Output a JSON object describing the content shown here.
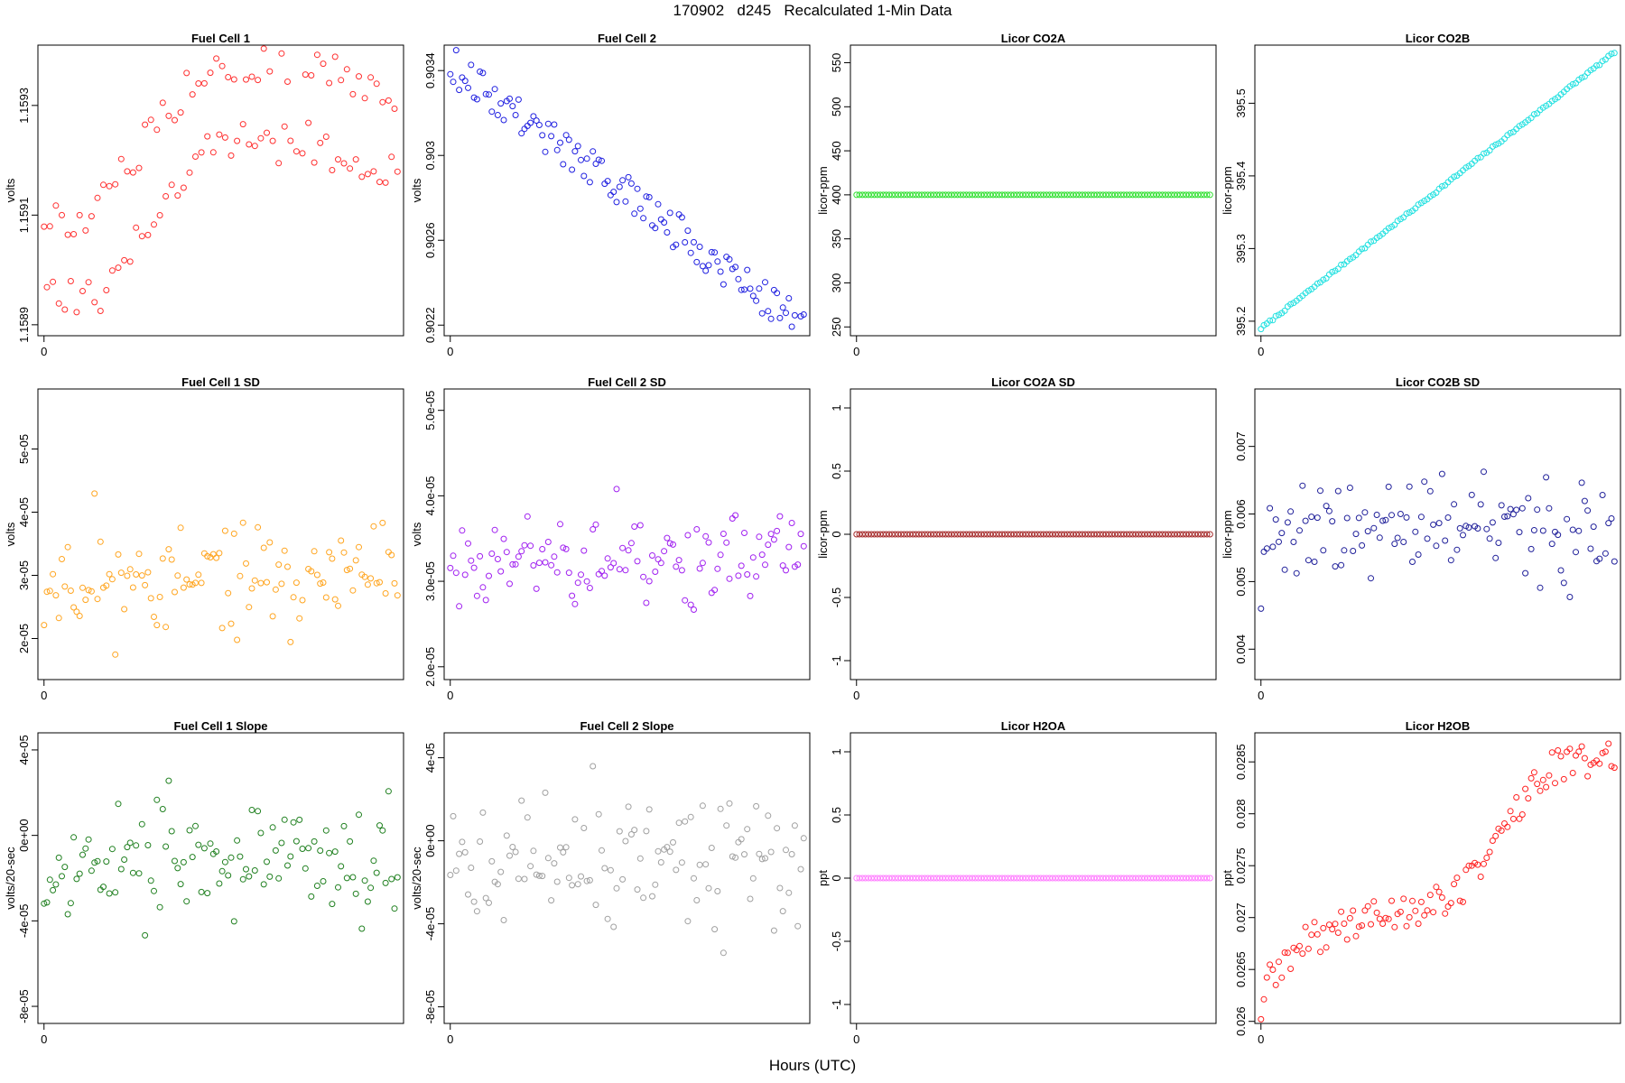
{
  "page_title": "170902   d245   Recalculated 1-Min Data",
  "xlabel": "Hours (UTC)",
  "chart_data": [
    {
      "type": "scatter",
      "title": "Fuel Cell 1",
      "ylabel": "volts",
      "color": "#ff3030",
      "x_ticks": [
        0
      ],
      "xlim": [
        -2,
        118
      ],
      "y_ticks": [
        1.1589,
        1.1591,
        1.1593
      ],
      "ylim": [
        1.15888,
        1.15941
      ],
      "pattern": "fc1",
      "n": 120,
      "start": 1.15912,
      "end": 1.15926
    },
    {
      "type": "scatter",
      "title": "Fuel Cell 2",
      "ylabel": "volts",
      "color": "#2020e0",
      "x_ticks": [
        0
      ],
      "xlim": [
        -2,
        118
      ],
      "y_ticks": [
        0.9022,
        0.9026,
        0.903,
        0.9034
      ],
      "ylim": [
        0.90215,
        0.90352
      ],
      "pattern": "fc2",
      "n": 120,
      "start": 0.90343,
      "end": 0.9022
    },
    {
      "type": "scatter",
      "title": "Licor CO2A",
      "ylabel": "licor-ppm",
      "color": "#30e030",
      "x_ticks": [
        0
      ],
      "xlim": [
        -2,
        118
      ],
      "y_ticks": [
        250,
        300,
        350,
        400,
        450,
        500,
        550
      ],
      "ylim": [
        240,
        570
      ],
      "pattern": "flat",
      "n": 120,
      "value": 400
    },
    {
      "type": "scatter",
      "title": "Licor CO2B",
      "ylabel": "licor-ppm",
      "color": "#20e0e0",
      "x_ticks": [
        0
      ],
      "xlim": [
        -2,
        118
      ],
      "y_ticks": [
        395.2,
        395.3,
        395.4,
        395.5
      ],
      "ylim": [
        395.18,
        395.58
      ],
      "pattern": "trend",
      "n": 120,
      "start": 395.19,
      "end": 395.57,
      "noise": 0.003
    },
    {
      "type": "scatter",
      "title": "Fuel Cell 1 SD",
      "ylabel": "volts",
      "color": "#ffa520",
      "x_ticks": [
        0
      ],
      "xlim": [
        -2,
        118
      ],
      "y_ticks": [
        "2e-05",
        "3e-05",
        "4e-05",
        "5e-05"
      ],
      "ylim": [
        1.35,
        5.95
      ],
      "pattern": "noise",
      "n": 120,
      "center": 2.9,
      "spread": 0.75,
      "seed": 11
    },
    {
      "type": "scatter",
      "title": "Fuel Cell 2 SD",
      "ylabel": "volts",
      "color": "#a020f0",
      "x_ticks": [
        0
      ],
      "xlim": [
        -2,
        118
      ],
      "y_ticks": [
        "2.0e-05",
        "3.0e-05",
        "4.0e-05",
        "5.0e-05"
      ],
      "ylim": [
        1.85,
        5.25
      ],
      "pattern": "noise",
      "n": 120,
      "center": 3.3,
      "spread": 0.55,
      "seed": 23
    },
    {
      "type": "scatter",
      "title": "Licor CO2A SD",
      "ylabel": "licor-ppm",
      "color": "#a52a2a",
      "x_ticks": [
        0
      ],
      "xlim": [
        -2,
        118
      ],
      "y_ticks": [
        -1,
        -0.5,
        0,
        0.5,
        1
      ],
      "ylim": [
        -1.15,
        1.15
      ],
      "pattern": "flat",
      "n": 120,
      "value": 0
    },
    {
      "type": "scatter",
      "title": "Licor CO2B SD",
      "ylabel": "licor-ppm",
      "color": "#20209a",
      "x_ticks": [
        0
      ],
      "xlim": [
        -2,
        118
      ],
      "y_ticks": [
        0.004,
        0.005,
        0.006,
        0.007
      ],
      "ylim": [
        0.00355,
        0.00785
      ],
      "pattern": "noise",
      "n": 120,
      "center": 0.0058,
      "spread": 0.00075,
      "seed": 37
    },
    {
      "type": "scatter",
      "title": "Fuel Cell 1 Slope",
      "ylabel": "volts/20-sec",
      "color": "#208020",
      "x_ticks": [
        0
      ],
      "xlim": [
        -2,
        118
      ],
      "y_ticks": [
        "-8e-05",
        "-4e-05",
        "0e+00",
        "4e-05"
      ],
      "ylim": [
        -8.8,
        4.8
      ],
      "pattern": "noise",
      "n": 120,
      "center": -1.2,
      "spread": 2.5,
      "seed": 53
    },
    {
      "type": "scatter",
      "title": "Fuel Cell 2 Slope",
      "ylabel": "volts/20-sec",
      "color": "#a0a0a0",
      "x_ticks": [
        0
      ],
      "xlim": [
        -2,
        118
      ],
      "y_ticks": [
        "-8e-05",
        "-4e-05",
        "0e+00",
        "4e-05"
      ],
      "ylim": [
        -8.8,
        5.2
      ],
      "pattern": "noise",
      "n": 120,
      "center": -1.0,
      "spread": 2.6,
      "seed": 71
    },
    {
      "type": "scatter",
      "title": "Licor H2OA",
      "ylabel": "ppt",
      "color": "#ff80ff",
      "x_ticks": [
        0
      ],
      "xlim": [
        -2,
        118
      ],
      "y_ticks": [
        -1,
        -0.5,
        0,
        0.5,
        1
      ],
      "ylim": [
        -1.15,
        1.15
      ],
      "pattern": "flat",
      "n": 120,
      "value": 0
    },
    {
      "type": "scatter",
      "title": "Licor H2OB",
      "ylabel": "ppt",
      "color": "#ff2020",
      "x_ticks": [
        0
      ],
      "xlim": [
        -2,
        118
      ],
      "y_ticks": [
        0.026,
        0.0265,
        0.027,
        0.0275,
        0.028,
        0.0285
      ],
      "ylim": [
        0.02598,
        0.02878
      ],
      "pattern": "h2ob",
      "n": 120,
      "seed": 89
    }
  ]
}
